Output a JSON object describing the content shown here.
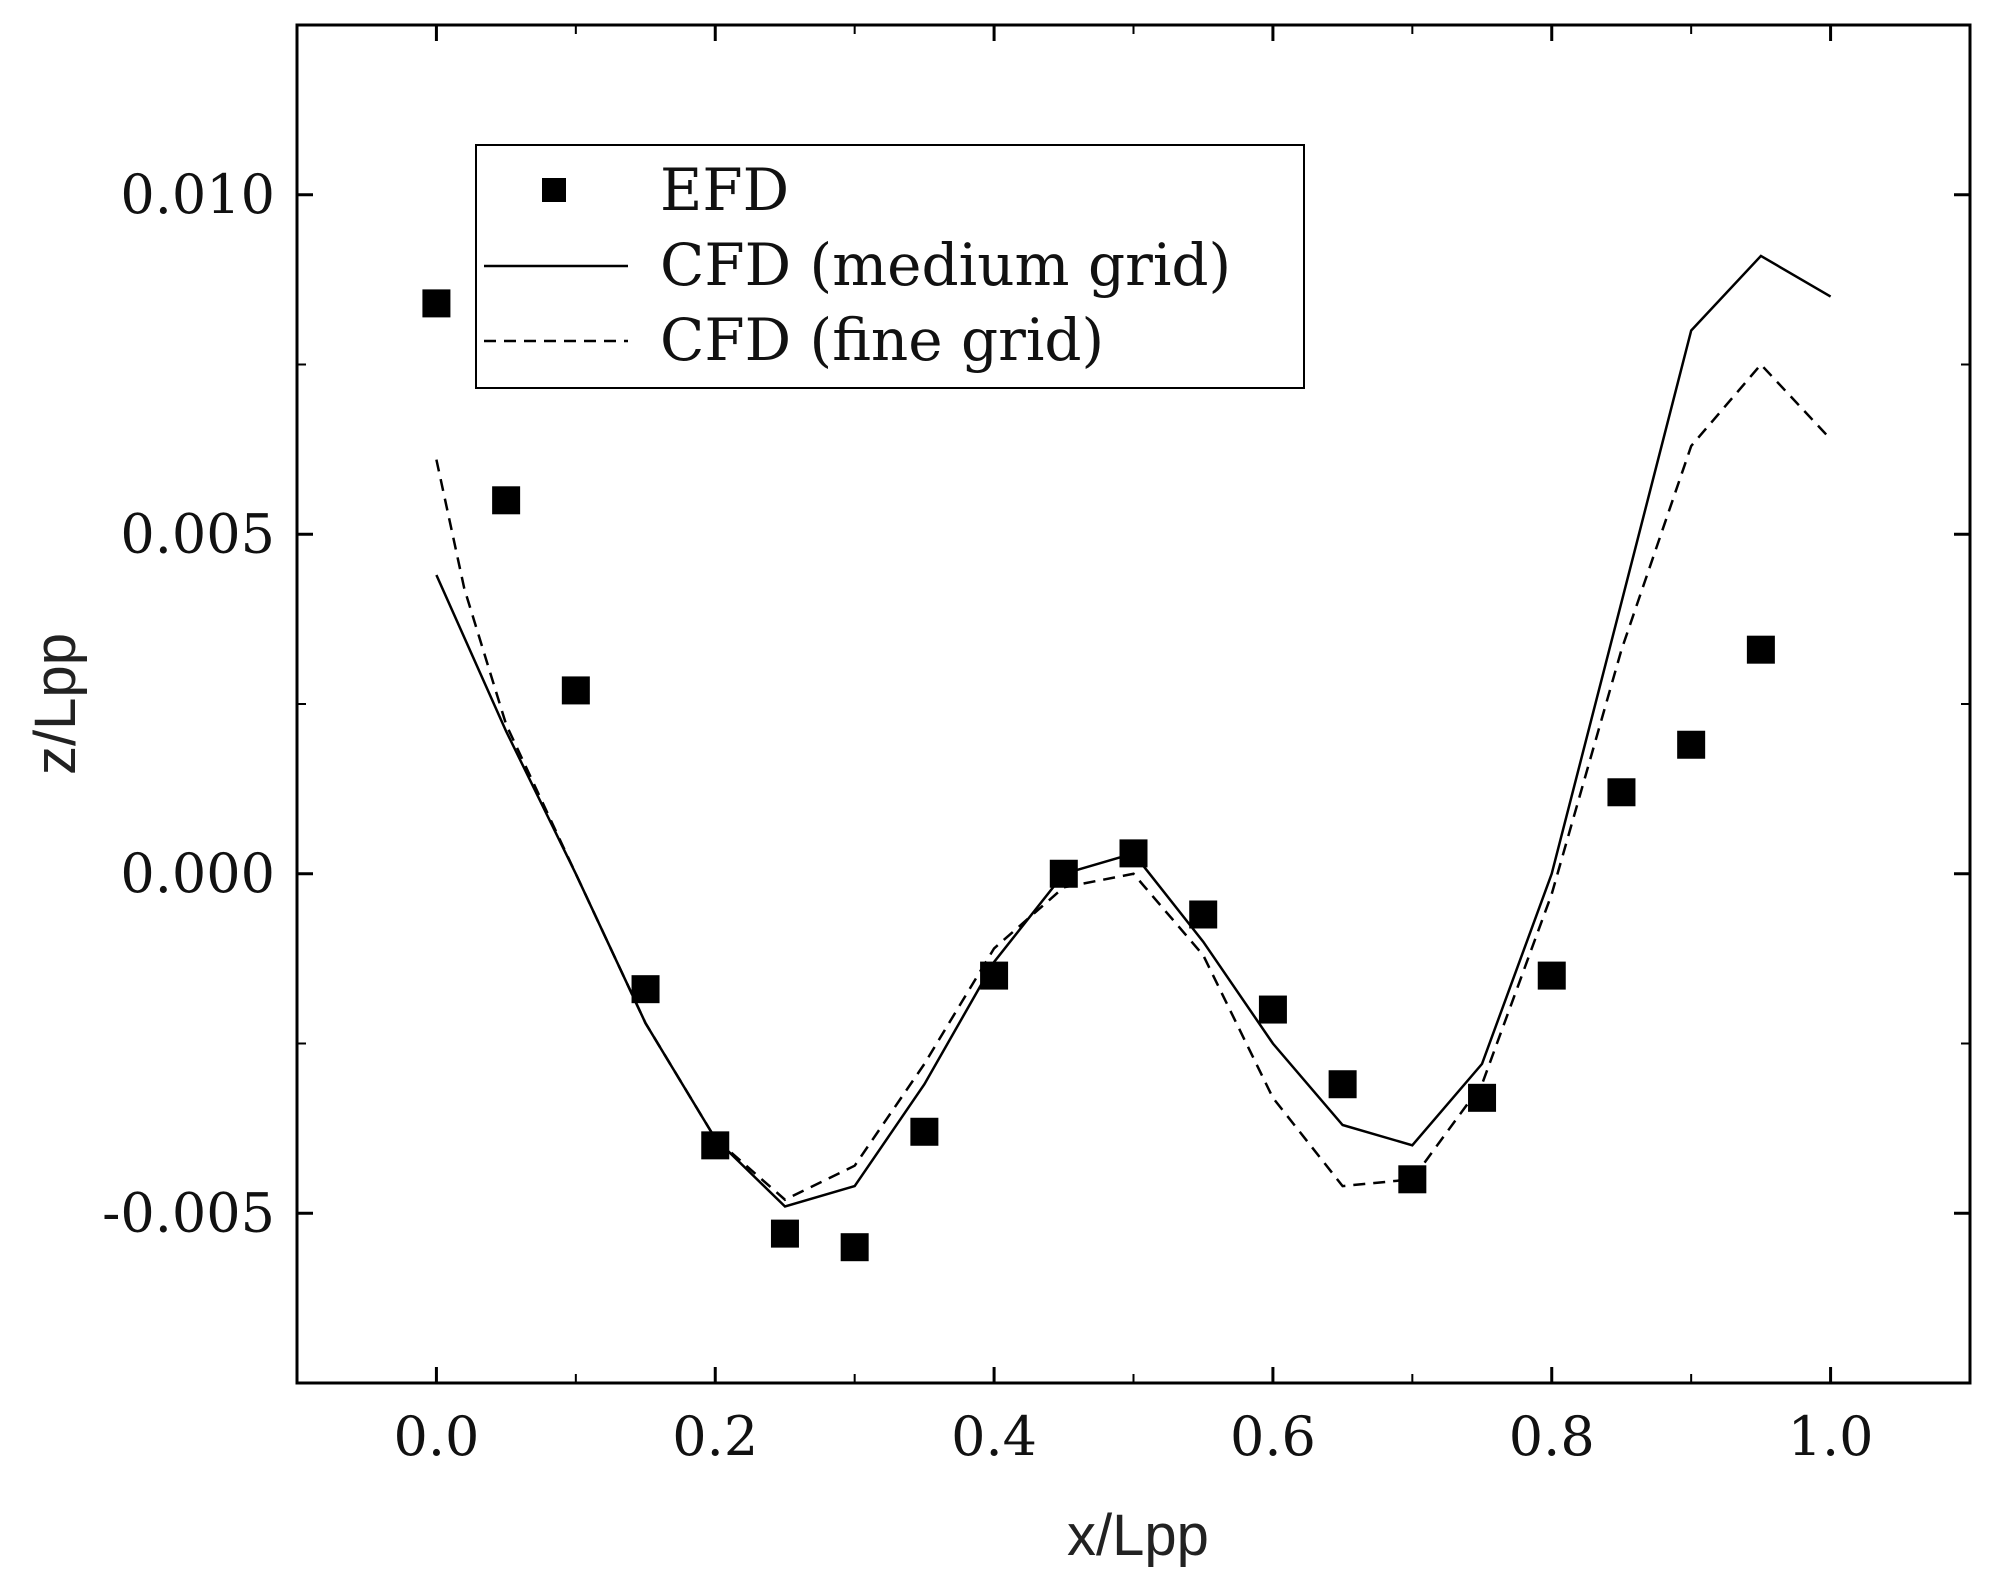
{
  "chart_data": {
    "type": "scatter",
    "xlabel": "x/Lpp",
    "ylabel": "z/Lpp",
    "xlim": [
      -0.1,
      1.1
    ],
    "ylim": [
      -0.0075,
      0.0125
    ],
    "x_ticks": [
      0.0,
      0.2,
      0.4,
      0.6,
      0.8,
      1.0
    ],
    "x_tick_labels": [
      "0.0",
      "0.2",
      "0.4",
      "0.6",
      "0.8",
      "1.0"
    ],
    "y_ticks": [
      -0.005,
      0.0,
      0.005,
      0.01
    ],
    "y_tick_labels": [
      "-0.005",
      "0.000",
      "0.005",
      "0.010"
    ],
    "grid": false,
    "legend_position": "top-left",
    "series": [
      {
        "name": "EFD",
        "style": "square-marker",
        "x": [
          0.0,
          0.05,
          0.1,
          0.15,
          0.2,
          0.25,
          0.3,
          0.35,
          0.4,
          0.45,
          0.5,
          0.55,
          0.6,
          0.65,
          0.7,
          0.75,
          0.8,
          0.85,
          0.9,
          0.95
        ],
        "y": [
          0.0084,
          0.0055,
          0.0027,
          -0.0017,
          -0.004,
          -0.0053,
          -0.0055,
          -0.0038,
          -0.0015,
          0.0,
          0.0003,
          -0.0006,
          -0.002,
          -0.0031,
          -0.0045,
          -0.0033,
          -0.0015,
          0.0012,
          0.0019,
          0.0033
        ]
      },
      {
        "name": "CFD (medium grid)",
        "style": "solid-line",
        "x": [
          0.0,
          0.05,
          0.1,
          0.15,
          0.2,
          0.25,
          0.3,
          0.35,
          0.4,
          0.45,
          0.5,
          0.55,
          0.6,
          0.65,
          0.7,
          0.75,
          0.8,
          0.85,
          0.9,
          0.95,
          1.0
        ],
        "y": [
          0.0044,
          0.0021,
          0.0,
          -0.0022,
          -0.0039,
          -0.0049,
          -0.0046,
          -0.0031,
          -0.0013,
          0.0,
          0.0003,
          -0.001,
          -0.0025,
          -0.0037,
          -0.004,
          -0.0028,
          0.0,
          0.004,
          0.008,
          0.0091,
          0.0085
        ]
      },
      {
        "name": "CFD (fine grid)",
        "style": "dashed-line",
        "x": [
          0.0,
          0.02,
          0.05,
          0.1,
          0.15,
          0.2,
          0.25,
          0.3,
          0.35,
          0.4,
          0.45,
          0.5,
          0.55,
          0.6,
          0.65,
          0.7,
          0.75,
          0.8,
          0.85,
          0.9,
          0.95,
          1.0
        ],
        "y": [
          0.0061,
          0.0042,
          0.0022,
          0.0,
          -0.0022,
          -0.0039,
          -0.0048,
          -0.0043,
          -0.0028,
          -0.0011,
          -0.0002,
          0.0,
          -0.0012,
          -0.0033,
          -0.0046,
          -0.0045,
          -0.0031,
          -0.0003,
          0.0033,
          0.0063,
          0.0075,
          0.0064
        ]
      }
    ]
  }
}
